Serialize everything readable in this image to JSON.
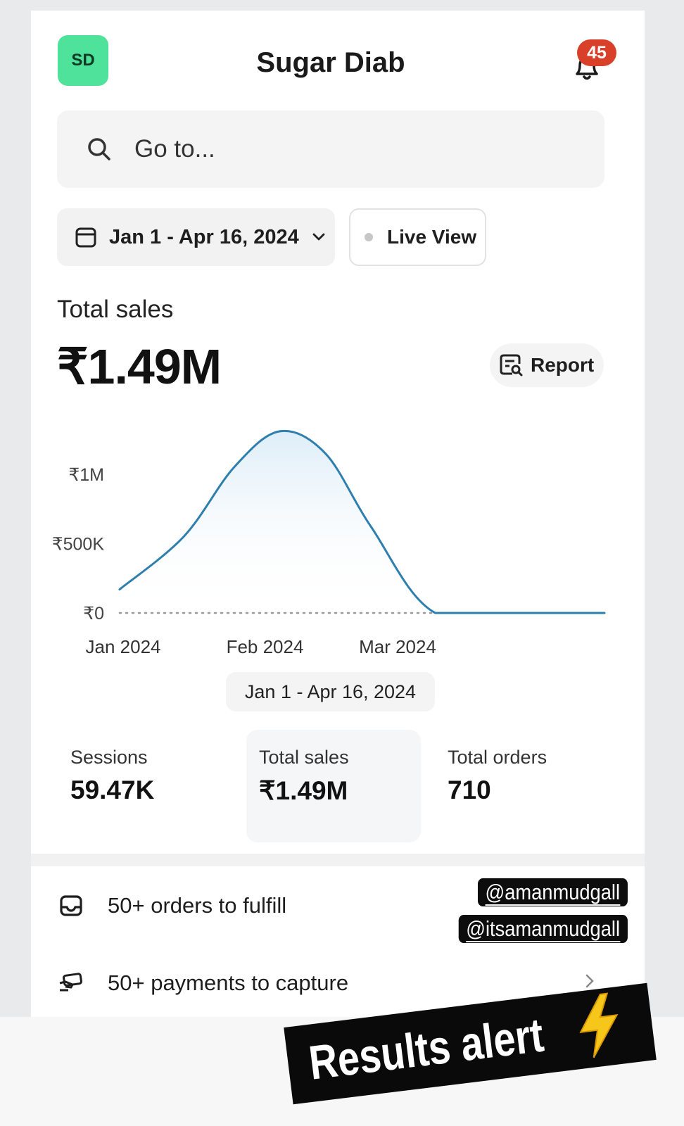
{
  "header": {
    "avatar_initials": "SD",
    "store_name": "Sugar Diab",
    "notification_count": "45"
  },
  "search": {
    "placeholder": "Go to..."
  },
  "filters": {
    "date_range": "Jan 1 - Apr 16, 2024",
    "live_view_label": "Live View"
  },
  "summary": {
    "label": "Total sales",
    "value": "₹1.49M",
    "report_label": "Report"
  },
  "chart_data": {
    "type": "area",
    "x": [
      "2024-01-01",
      "2024-01-15",
      "2024-01-26",
      "2024-02-05",
      "2024-02-15",
      "2024-02-25",
      "2024-03-10",
      "2024-03-31",
      "2024-04-16"
    ],
    "series": [
      {
        "values": [
          0.17,
          0.55,
          1.05,
          1.31,
          1.15,
          0.62,
          0.0,
          0.0,
          0.0
        ]
      }
    ],
    "y_unit": "₹M",
    "xtick_labels": [
      "Jan 2024",
      "Feb 2024",
      "Mar 2024"
    ],
    "ytick_labels": [
      "₹0",
      "₹500K",
      "₹1M"
    ],
    "ytick_values": [
      0,
      0.5,
      1.0
    ],
    "ylim": [
      0,
      1.35
    ],
    "baseline": "dotted comparison line at ₹0",
    "color": "#2f7fae"
  },
  "range_label": "Jan 1 - Apr 16, 2024",
  "metrics": [
    {
      "label": "Sessions",
      "value": "59.47K"
    },
    {
      "label": "Total sales",
      "value": "₹1.49M"
    },
    {
      "label": "Total orders",
      "value": "710"
    }
  ],
  "tasks": [
    {
      "label": "50+ orders to fulfill",
      "icon": "inbox-icon"
    },
    {
      "label": "50+ payments to capture",
      "icon": "payment-icon"
    }
  ],
  "overlay": {
    "tag_1": "@amanmudgall",
    "tag_2": "@itsamanmudgall",
    "sticker_text": "Results alert"
  },
  "colors": {
    "avatar": "#4fe29a",
    "badge": "#d8402a",
    "chart_line": "#2f7fae"
  }
}
